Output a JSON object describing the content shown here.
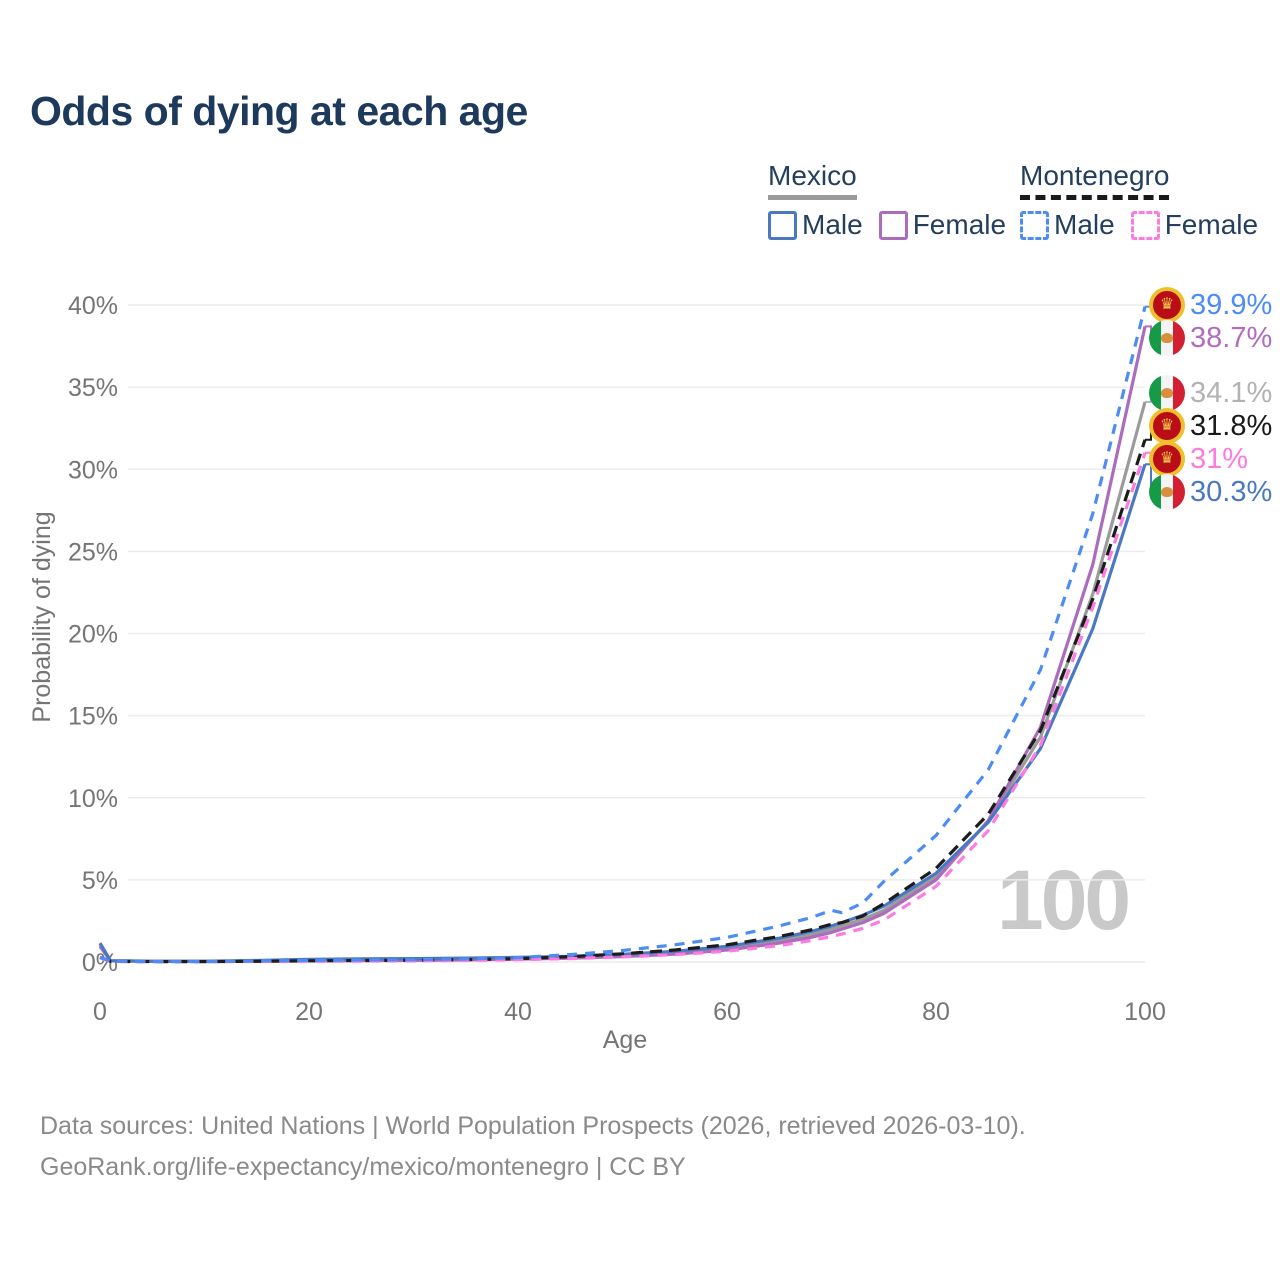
{
  "title": "Odds of dying at each age",
  "legend": {
    "groups": [
      {
        "country": "Mexico",
        "line": "solid",
        "underline_color": "#9a9a9a",
        "items": [
          {
            "label": "Male",
            "color": "#4b79c1"
          },
          {
            "label": "Female",
            "color": "#ab6cbd"
          }
        ]
      },
      {
        "country": "Montenegro",
        "line": "dashed",
        "underline_color": "#1a1a1a",
        "items": [
          {
            "label": "Male",
            "color": "#4d8cf5"
          },
          {
            "label": "Female",
            "color": "#fd7ae1"
          }
        ]
      }
    ]
  },
  "watermark": "100",
  "colors": {
    "title_text": "#1d3a5c",
    "legend_text": "#243e5e",
    "axis_text": "#757575",
    "gridline": "#ececec",
    "watermark": "#c9c9c9",
    "footer_text": "#8a8a8a"
  },
  "chart_data": {
    "type": "line",
    "title": "Odds of dying at each age",
    "xlabel": "Age",
    "ylabel": "Probability of dying",
    "xlim": [
      0,
      100
    ],
    "ylim": [
      0,
      40
    ],
    "grid": "horizontal",
    "unit": "%",
    "x_ticks": [
      {
        "value": 0,
        "label": "0"
      },
      {
        "value": 20,
        "label": "20"
      },
      {
        "value": 40,
        "label": "40"
      },
      {
        "value": 60,
        "label": "60"
      },
      {
        "value": 80,
        "label": "80"
      },
      {
        "value": 100,
        "label": "100"
      }
    ],
    "y_ticks": [
      {
        "value": 0,
        "label": "0%"
      },
      {
        "value": 5,
        "label": "5%"
      },
      {
        "value": 10,
        "label": "10%"
      },
      {
        "value": 15,
        "label": "15%"
      },
      {
        "value": 20,
        "label": "20%"
      },
      {
        "value": 25,
        "label": "25%"
      },
      {
        "value": 30,
        "label": "30%"
      },
      {
        "value": 35,
        "label": "35%"
      },
      {
        "value": 40,
        "label": "40%"
      }
    ],
    "x": [
      0,
      1,
      5,
      10,
      15,
      20,
      25,
      30,
      35,
      40,
      45,
      50,
      55,
      60,
      65,
      68,
      70,
      71,
      73,
      75,
      80,
      85,
      90,
      95,
      100
    ],
    "series": [
      {
        "id": "mexico-both",
        "name": "Mexico (both sexes)",
        "country": "Mexico",
        "sex": "both",
        "line": "solid",
        "color": "#9b9b9b",
        "values": [
          1.05,
          0.075,
          0.045,
          0.045,
          0.07,
          0.11,
          0.13,
          0.15,
          0.18,
          0.22,
          0.29,
          0.4,
          0.56,
          0.84,
          1.3,
          1.65,
          2.0,
          2.2,
          2.6,
          3.15,
          5.2,
          8.55,
          13.7,
          22.4,
          34.1
        ]
      },
      {
        "id": "mexico-female",
        "name": "Mexico Female",
        "country": "Mexico",
        "sex": "female",
        "line": "solid",
        "color": "#ab6cbd",
        "values": [
          0.95,
          0.07,
          0.04,
          0.04,
          0.05,
          0.07,
          0.08,
          0.1,
          0.13,
          0.17,
          0.23,
          0.33,
          0.48,
          0.73,
          1.15,
          1.5,
          1.8,
          2.0,
          2.4,
          2.95,
          5.0,
          8.6,
          14.3,
          24.2,
          38.7
        ]
      },
      {
        "id": "mexico-male",
        "name": "Mexico Male",
        "country": "Mexico",
        "sex": "male",
        "line": "solid",
        "color": "#4b79c1",
        "values": [
          1.15,
          0.08,
          0.05,
          0.05,
          0.09,
          0.16,
          0.19,
          0.21,
          0.24,
          0.28,
          0.35,
          0.47,
          0.65,
          0.95,
          1.45,
          1.85,
          2.2,
          2.4,
          2.85,
          3.4,
          5.4,
          8.5,
          13.0,
          20.3,
          30.3
        ]
      },
      {
        "id": "montenegro-both",
        "name": "Montenegro (both sexes)",
        "country": "Montenegro",
        "sex": "both",
        "line": "dashed",
        "color": "#1c1c1c",
        "values": [
          0.28,
          0.035,
          0.025,
          0.025,
          0.045,
          0.075,
          0.09,
          0.11,
          0.14,
          0.2,
          0.32,
          0.5,
          0.73,
          1.05,
          1.55,
          1.95,
          2.3,
          2.4,
          2.8,
          3.55,
          5.7,
          9.0,
          14.1,
          22.1,
          31.8
        ]
      },
      {
        "id": "montenegro-female",
        "name": "Montenegro Female",
        "country": "Montenegro",
        "sex": "female",
        "line": "dashed",
        "color": "#fd7ae1",
        "values": [
          0.25,
          0.03,
          0.02,
          0.02,
          0.03,
          0.045,
          0.055,
          0.07,
          0.1,
          0.14,
          0.21,
          0.31,
          0.45,
          0.66,
          1.0,
          1.3,
          1.55,
          1.7,
          2.05,
          2.55,
          4.6,
          8.0,
          13.2,
          21.6,
          31.0
        ]
      },
      {
        "id": "montenegro-male",
        "name": "Montenegro Male",
        "country": "Montenegro",
        "sex": "male",
        "line": "dashed",
        "color": "#4d8cf5",
        "values": [
          0.3,
          0.04,
          0.03,
          0.03,
          0.06,
          0.1,
          0.12,
          0.14,
          0.18,
          0.27,
          0.45,
          0.7,
          1.05,
          1.5,
          2.2,
          2.7,
          3.15,
          3.0,
          3.6,
          4.9,
          7.7,
          11.7,
          17.8,
          27.3,
          39.9
        ]
      }
    ],
    "end_labels": [
      {
        "text": "39.9%",
        "value": 39.9,
        "series": "Montenegro Male",
        "flag": "montenegro",
        "color": "#4d8cf5"
      },
      {
        "text": "38.7%",
        "value": 38.7,
        "series": "Mexico Female",
        "flag": "mexico",
        "color": "#b16cc1"
      },
      {
        "text": "34.1%",
        "value": 34.1,
        "series": "Mexico (both sexes)",
        "flag": "mexico",
        "color": "#b2b2b2"
      },
      {
        "text": "31.8%",
        "value": 31.8,
        "series": "Montenegro (both sexes)",
        "flag": "montenegro",
        "color": "#1a1a1a"
      },
      {
        "text": "31%",
        "value": 31.0,
        "series": "Montenegro Female",
        "flag": "montenegro",
        "color": "#fd7ae1"
      },
      {
        "text": "30.3%",
        "value": 30.3,
        "series": "Mexico Male",
        "flag": "mexico",
        "color": "#4b79c1"
      }
    ],
    "hovered_age": "100"
  },
  "footer": {
    "line1": "Data sources: United Nations | World Population Prospects (2026, retrieved 2026-03-10).",
    "line2": "GeoRank.org/life-expectancy/mexico/montenegro | CC BY"
  }
}
